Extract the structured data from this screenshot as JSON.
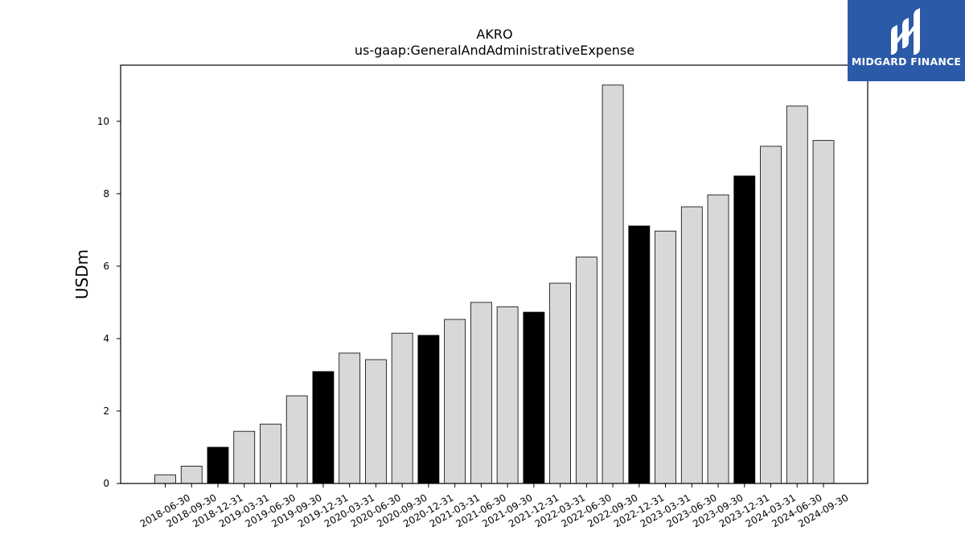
{
  "chart_data": {
    "type": "bar",
    "title": "AKRO",
    "subtitle": "us-gaap:GeneralAndAdministrativeExpense",
    "xlabel": "",
    "ylabel": "USDm",
    "ylim": [
      0,
      11.55
    ],
    "yticks": [
      0,
      2,
      4,
      6,
      8,
      10
    ],
    "grid": false,
    "categories": [
      "2018-06-30",
      "2018-09-30",
      "2018-12-31",
      "2019-03-31",
      "2019-06-30",
      "2019-09-30",
      "2019-12-31",
      "2020-03-31",
      "2020-06-30",
      "2020-09-30",
      "2020-12-31",
      "2021-03-31",
      "2021-06-30",
      "2021-09-30",
      "2021-12-31",
      "2022-03-31",
      "2022-06-30",
      "2022-09-30",
      "2022-12-31",
      "2023-03-31",
      "2023-06-30",
      "2023-09-30",
      "2023-12-31",
      "2024-03-31",
      "2024-06-30",
      "2024-09-30"
    ],
    "values": [
      0.24,
      0.48,
      1.0,
      1.44,
      1.64,
      2.42,
      3.09,
      3.6,
      3.42,
      4.15,
      4.09,
      4.53,
      5.0,
      4.88,
      4.73,
      5.53,
      6.25,
      11.0,
      7.11,
      6.97,
      7.64,
      7.97,
      8.49,
      9.31,
      10.42,
      9.47
    ],
    "highlight_color": "#000000",
    "bar_color": "#d8d8d8",
    "highlighted": [
      false,
      false,
      true,
      false,
      false,
      false,
      true,
      false,
      false,
      false,
      true,
      false,
      false,
      false,
      true,
      false,
      false,
      false,
      true,
      false,
      false,
      false,
      true,
      false,
      false,
      false
    ]
  },
  "logo": {
    "text": "MIDGARD FINANCE",
    "color": "#2b5aa8"
  }
}
